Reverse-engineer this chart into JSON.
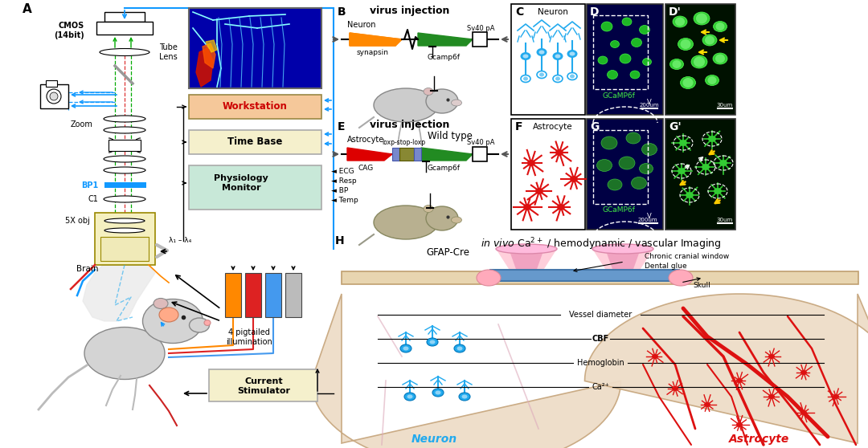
{
  "bg_color": "#ffffff",
  "workstation_color": "#f5c89a",
  "workstation_text": "Workstation",
  "workstation_text_color": "#cc0000",
  "timebase_color": "#f5f0cc",
  "timebase_text": "Time Base",
  "physiology_color": "#c8e8d8",
  "physiology_text": "Physiology\nMonitor",
  "current_stimulator_color": "#f5f0cc",
  "current_stimulator_text": "Current\nStimulator",
  "bp1_color": "#1199ff",
  "cmos_label": "CMOS\n(14bit)",
  "tube_lens_label": "Tube\nLens",
  "zoom_label": "Zoom",
  "c1_label": "C1",
  "obj_label": "5X obj",
  "brain_label": "Brain",
  "bp1_label": "BP1",
  "illumination_label": "4 pigtailed\nillumination",
  "virus_injection_label": "virus injection",
  "synapsin_label": "synapsin",
  "gcamp6f_label": "Gcamp6f",
  "sv40_label": "Sv40 pA",
  "wildtype_label": "Wild type",
  "neuron_label": "Neuron",
  "astrocyte_label": "Astrocyte",
  "gfap_label": "GFAP-Cre",
  "cag_label": "CAG",
  "loxp_label": "loxp-stop-loxp",
  "h_title_italic": "in vivo",
  "h_title_rest": " Ca",
  "cranial_label": "Chronic cranial window",
  "dental_label": "Dental glue",
  "skull_label": "Skull",
  "vessel_label": "Vessel diameter",
  "cbf_label": "CBF",
  "hemo_label": "Hemoglobin",
  "ca2_label": "Ca²⁺",
  "neuron_bottom_label": "Neuron",
  "astrocyte_bottom_label": "Astrocyte",
  "gcaMP6f_label": "GCaMP6f",
  "scale_200": "200um",
  "scale_30": "30um",
  "v_label": "V",
  "orange_color": "#ff8800",
  "green_color": "#228B22",
  "red_color": "#cc0000",
  "neuron_blue": "#22aaee",
  "astrocyte_red": "#dd1111",
  "lambda_label": "λ₁ – λ₄"
}
